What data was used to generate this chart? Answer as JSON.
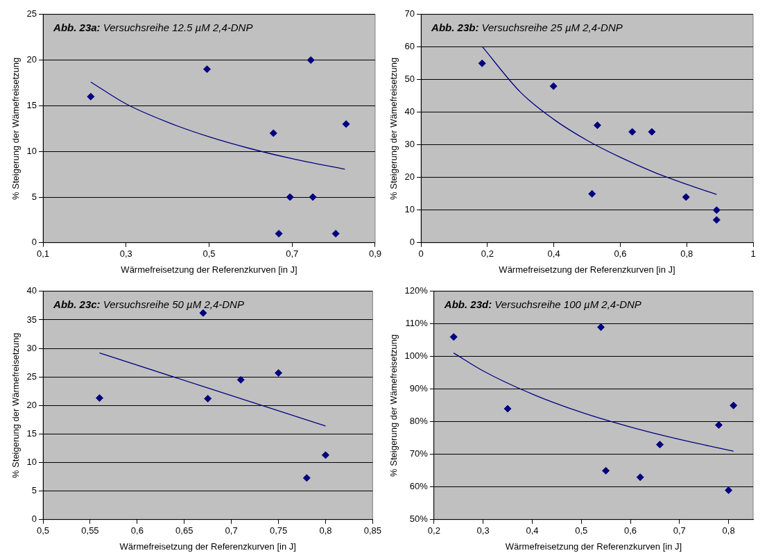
{
  "chart_data": [
    {
      "type": "scatter",
      "title": "Abb. 23a: Versuchsreihe 12.5 µM 2,4-DNP",
      "xlabel": "Wärmefreisetzung der Referenzkurven [in J]",
      "ylabel": "% Steigerung der Wämefreisetzung",
      "xlim": [
        0.1,
        0.9
      ],
      "xticks": [
        {
          "value": 0.1,
          "label": "0,1"
        },
        {
          "value": 0.3,
          "label": "0,3"
        },
        {
          "value": 0.5,
          "label": "0,5"
        },
        {
          "value": 0.7,
          "label": "0,7"
        },
        {
          "value": 0.9,
          "label": "0,9"
        }
      ],
      "ylim": [
        0,
        25
      ],
      "yticks": [
        0,
        5,
        10,
        15,
        20,
        25
      ],
      "grid": "y",
      "legend": false,
      "marker": "diamond",
      "series": [
        {
          "type": "scatter",
          "color": "#000080",
          "x": [
            0.215,
            0.495,
            0.745,
            0.655,
            0.83,
            0.695,
            0.75,
            0.668,
            0.805
          ],
          "values": [
            16,
            19,
            20,
            12,
            13,
            5,
            5,
            1,
            1
          ]
        },
        {
          "type": "line",
          "color": "#000080",
          "marker": "none",
          "x": [
            0.215,
            0.3,
            0.4,
            0.5,
            0.6,
            0.7,
            0.827
          ],
          "values": [
            17.6,
            15.2,
            13.2,
            11.6,
            10.3,
            9.2,
            8.05
          ]
        }
      ]
    },
    {
      "type": "scatter",
      "title": "Abb. 23b: Versuchsreihe 25 µM 2,4-DNP",
      "xlabel": "Wärmefreisetzung der Referenzkurven [in J]",
      "ylabel": "% Steigerung der Wämefreisetzung",
      "xlim": [
        0,
        1
      ],
      "xticks": [
        0,
        {
          "value": 0.2,
          "label": "0,2"
        },
        {
          "value": 0.4,
          "label": "0,4"
        },
        {
          "value": 0.6,
          "label": "0,6"
        },
        {
          "value": 0.8,
          "label": "0,8"
        },
        1
      ],
      "ylim": [
        0,
        70
      ],
      "yticks": [
        0,
        10,
        20,
        30,
        40,
        50,
        60,
        70
      ],
      "grid": "y",
      "legend": false,
      "marker": "diamond",
      "series": [
        {
          "type": "scatter",
          "color": "#000080",
          "x": [
            0.184,
            0.399,
            0.531,
            0.515,
            0.636,
            0.695,
            0.798,
            0.89,
            0.89
          ],
          "values": [
            55,
            48,
            36,
            15,
            34,
            34,
            14,
            10,
            7
          ]
        },
        {
          "type": "line",
          "color": "#000080",
          "marker": "none",
          "x": [
            0.184,
            0.3,
            0.4,
            0.5,
            0.6,
            0.7,
            0.8,
            0.89
          ],
          "values": [
            60.2,
            46.1,
            37.8,
            31.4,
            26.2,
            21.7,
            17.9,
            14.8
          ]
        }
      ]
    },
    {
      "type": "scatter",
      "title": "Abb. 23c: Versuchsreihe 50 µM 2,4-DNP",
      "xlabel": "Wärmefreisetzung der Referenzkurven [in J]",
      "ylabel": "% Steigerung der Wärmefreisetzung",
      "xlim": [
        0.5,
        0.85
      ],
      "xticks": [
        {
          "value": 0.5,
          "label": "0,5"
        },
        {
          "value": 0.55,
          "label": "0,55"
        },
        {
          "value": 0.6,
          "label": "0,6"
        },
        {
          "value": 0.65,
          "label": "0,65"
        },
        {
          "value": 0.7,
          "label": "0,7"
        },
        {
          "value": 0.75,
          "label": "0,75"
        },
        {
          "value": 0.8,
          "label": "0,8"
        },
        {
          "value": 0.85,
          "label": "0,85"
        }
      ],
      "ylim": [
        0,
        40
      ],
      "yticks": [
        0,
        5,
        10,
        15,
        20,
        25,
        30,
        35,
        40
      ],
      "grid": "y",
      "legend": false,
      "marker": "diamond",
      "series": [
        {
          "type": "scatter",
          "color": "#000080",
          "x": [
            0.56,
            0.67,
            0.675,
            0.71,
            0.75,
            0.78,
            0.8
          ],
          "values": [
            21.3,
            36.2,
            21.2,
            24.5,
            25.7,
            7.3,
            11.3
          ]
        },
        {
          "type": "line",
          "color": "#000080",
          "marker": "none",
          "x": [
            0.56,
            0.8
          ],
          "values": [
            29.2,
            16.4
          ]
        }
      ]
    },
    {
      "type": "scatter",
      "title": "Abb. 23d: Versuchsreihe 100 µM 2,4-DNP",
      "xlabel": "Wärmefreisetzung der Referenzkurven [in J]",
      "ylabel": "% Steigerung der Wämefreisetzung",
      "xlim": [
        0.2,
        0.85
      ],
      "xticks": [
        {
          "value": 0.2,
          "label": "0,2"
        },
        {
          "value": 0.3,
          "label": "0,3"
        },
        {
          "value": 0.4,
          "label": "0,4"
        },
        {
          "value": 0.5,
          "label": "0,5"
        },
        {
          "value": 0.6,
          "label": "0,6"
        },
        {
          "value": 0.7,
          "label": "0,7"
        },
        {
          "value": 0.8,
          "label": "0,8"
        }
      ],
      "ylim": [
        50,
        120
      ],
      "yticks": [
        {
          "value": 50,
          "label": "50%"
        },
        {
          "value": 60,
          "label": "60%"
        },
        {
          "value": 70,
          "label": "70%"
        },
        {
          "value": 80,
          "label": "80%"
        },
        {
          "value": 90,
          "label": "90%"
        },
        {
          "value": 100,
          "label": "100%"
        },
        {
          "value": 110,
          "label": "110%"
        },
        {
          "value": 120,
          "label": "120%"
        }
      ],
      "grid": "y",
      "legend": false,
      "marker": "diamond",
      "series": [
        {
          "type": "scatter",
          "color": "#000080",
          "x": [
            0.24,
            0.35,
            0.54,
            0.55,
            0.62,
            0.66,
            0.78,
            0.8,
            0.81
          ],
          "values": [
            106,
            84,
            109,
            65,
            63,
            73,
            79,
            59,
            85
          ]
        },
        {
          "type": "line",
          "color": "#000080",
          "marker": "none",
          "x": [
            0.24,
            0.3,
            0.4,
            0.5,
            0.6,
            0.7,
            0.81
          ],
          "values": [
            101.1,
            95.6,
            88.5,
            82.9,
            78.4,
            74.6,
            71.0
          ]
        }
      ]
    }
  ]
}
